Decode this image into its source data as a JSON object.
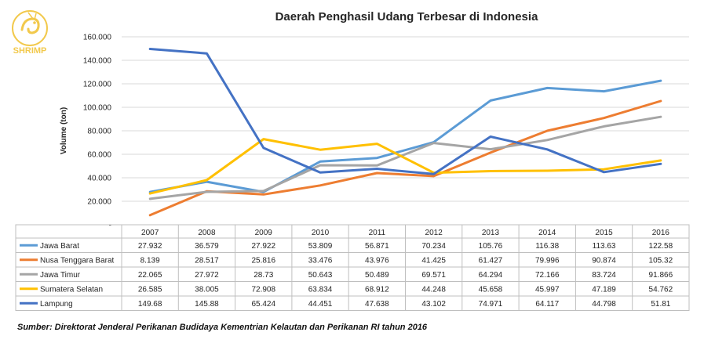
{
  "brand": {
    "logo_text": "SHRIMP",
    "logo_color": "#F2C94C"
  },
  "source": "Sumber: Direktorat Jenderal Perikanan Budidaya Kementrian Kelautan dan Perikanan RI tahun 2016",
  "chart_data": {
    "type": "line",
    "title": "Daerah Penghasil Udang Terbesar di Indonesia",
    "xlabel": "",
    "ylabel": "Volume (ton)",
    "ylim": [
      0,
      160
    ],
    "yticks": [
      "-",
      "20.000",
      "40.000",
      "60.000",
      "80.000",
      "100.000",
      "120.000",
      "140.000",
      "160.000"
    ],
    "grid": true,
    "legend": "data-table",
    "categories": [
      "2007",
      "2008",
      "2009",
      "2010",
      "2011",
      "2012",
      "2013",
      "2014",
      "2015",
      "2016"
    ],
    "series": [
      {
        "name": "Jawa Barat",
        "color": "#5B9BD5",
        "values": [
          27.932,
          36.579,
          27.922,
          53.809,
          56.871,
          70.234,
          105.76,
          116.38,
          113.63,
          122.58
        ],
        "labels": [
          "27.932",
          "36.579",
          "27.922",
          "53.809",
          "56.871",
          "70.234",
          "105.76",
          "116.38",
          "113.63",
          "122.58"
        ]
      },
      {
        "name": "Nusa Tenggara Barat",
        "color": "#ED7D31",
        "values": [
          8.139,
          28.517,
          25.816,
          33.476,
          43.976,
          41.425,
          61.427,
          79.996,
          90.874,
          105.32
        ],
        "labels": [
          "8.139",
          "28.517",
          "25.816",
          "33.476",
          "43.976",
          "41.425",
          "61.427",
          "79.996",
          "90.874",
          "105.32"
        ]
      },
      {
        "name": "Jawa Timur",
        "color": "#A5A5A5",
        "values": [
          22.065,
          27.972,
          28.73,
          50.643,
          50.489,
          69.571,
          64.294,
          72.166,
          83.724,
          91.866
        ],
        "labels": [
          "22.065",
          "27.972",
          "28.73",
          "50.643",
          "50.489",
          "69.571",
          "64.294",
          "72.166",
          "83.724",
          "91.866"
        ]
      },
      {
        "name": "Sumatera Selatan",
        "color": "#FFC000",
        "values": [
          26.585,
          38.005,
          72.908,
          63.834,
          68.912,
          44.248,
          45.658,
          45.997,
          47.189,
          54.762
        ],
        "labels": [
          "26.585",
          "38.005",
          "72.908",
          "63.834",
          "68.912",
          "44.248",
          "45.658",
          "45.997",
          "47.189",
          "54.762"
        ]
      },
      {
        "name": "Lampung",
        "color": "#4472C4",
        "values": [
          149.68,
          145.88,
          65.424,
          44.451,
          47.638,
          43.102,
          74.971,
          64.117,
          44.798,
          51.81
        ],
        "labels": [
          "149.68",
          "145.88",
          "65.424",
          "44.451",
          "47.638",
          "43.102",
          "74.971",
          "64.117",
          "44.798",
          "51.81"
        ]
      }
    ]
  }
}
